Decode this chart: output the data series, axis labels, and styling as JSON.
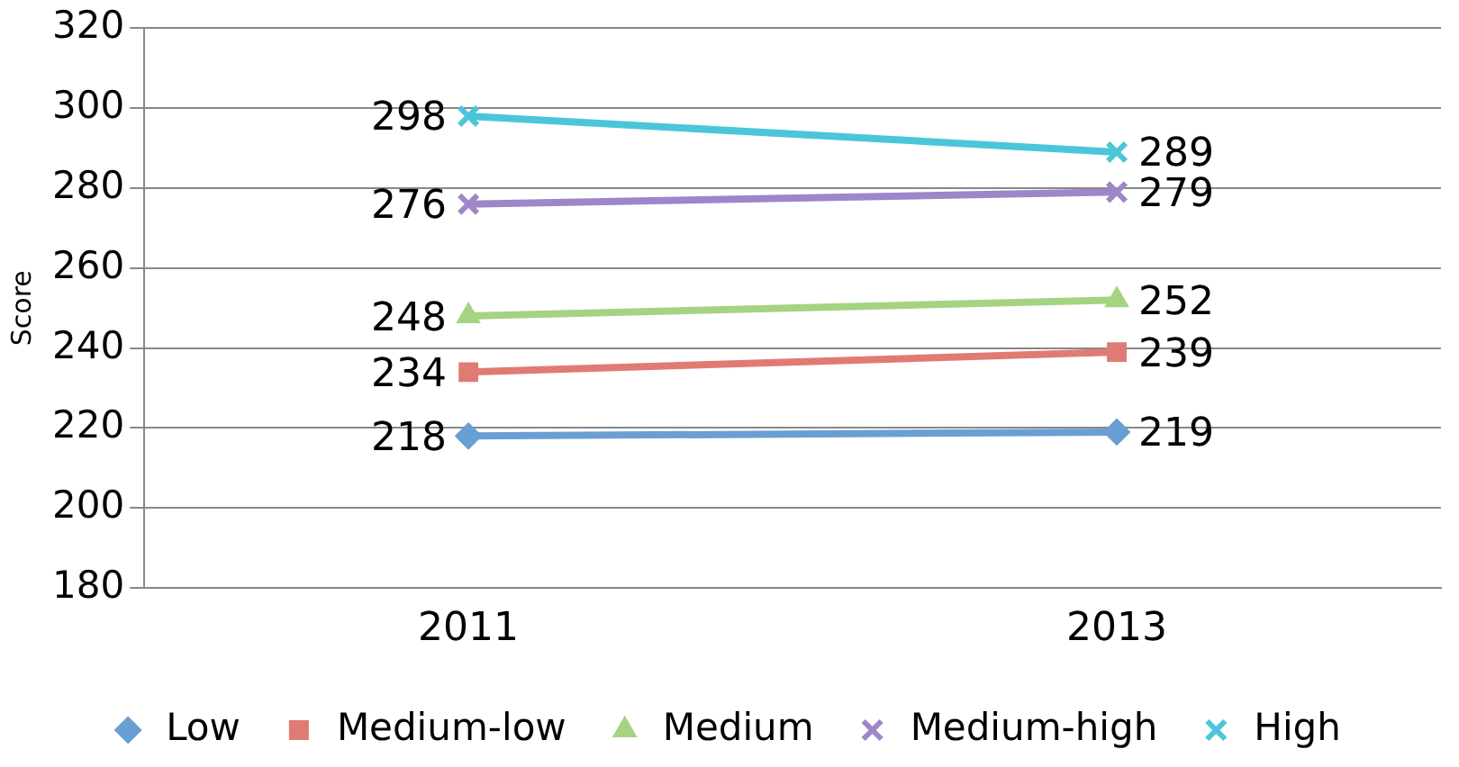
{
  "chart_data": {
    "type": "line",
    "ylabel": "Score",
    "categories": [
      "2011",
      "2013"
    ],
    "ylim": [
      180,
      320
    ],
    "yticks": [
      180,
      200,
      220,
      240,
      260,
      280,
      300,
      320
    ],
    "grid": "y",
    "legend": "bottom",
    "data_labels": true,
    "series": [
      {
        "name": "Low",
        "color": "#6a9fd3",
        "values": [
          218,
          219
        ],
        "marker": "diamond"
      },
      {
        "name": "Medium-low",
        "color": "#e07b74",
        "values": [
          234,
          239
        ],
        "marker": "square"
      },
      {
        "name": "Medium",
        "color": "#a5d381",
        "values": [
          248,
          252
        ],
        "marker": "triangle"
      },
      {
        "name": "Medium-high",
        "color": "#9e86c8",
        "values": [
          276,
          279
        ],
        "marker": "cross"
      },
      {
        "name": "High",
        "color": "#4bc6d8",
        "values": [
          298,
          289
        ],
        "marker": "cross"
      }
    ]
  }
}
